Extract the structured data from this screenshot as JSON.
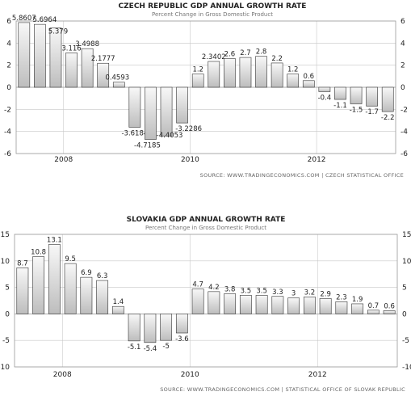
{
  "chart_data": [
    {
      "type": "bar",
      "title": "CZECH REPUBLIC GDP ANNUAL GROWTH RATE",
      "subtitle": "Percent Change in Gross Domestic Product",
      "source": "SOURCE: WWW.TRADINGECONOMICS.COM | CZECH STATISTICAL OFFICE",
      "ylim": [
        -6,
        6
      ],
      "yticks": [
        -6,
        -4,
        -2,
        0,
        2,
        4,
        6
      ],
      "xticks": [
        {
          "label": "2008",
          "index": 3
        },
        {
          "label": "2010",
          "index": 11
        },
        {
          "label": "2012",
          "index": 19
        }
      ],
      "values": [
        5.8607,
        5.6964,
        5.379,
        3.116,
        3.4988,
        2.1777,
        0.4593,
        -3.6184,
        -4.7185,
        -4.4053,
        -3.2286,
        1.2,
        2.3402,
        2.6,
        2.7,
        2.8,
        2.2,
        1.2,
        0.6,
        -0.4,
        -1.1,
        -1.5,
        -1.7,
        -2.2
      ],
      "data_labels": [
        "5.8607",
        "5.6964",
        "5.379",
        "3.116",
        "3.4988",
        "2.1777",
        "0.4593",
        "-3.6184",
        "-4.7185",
        "-4.4053",
        "-3.2286",
        "1.2",
        "2.3402",
        "2.6",
        "2.7",
        "2.8",
        "2.2",
        "1.2",
        "0.6",
        "-0.4",
        "-1.1",
        "-1.5",
        "-1.7",
        "-2.2"
      ],
      "grid": true,
      "y_axis_both_sides": true
    },
    {
      "type": "bar",
      "title": "SLOVAKIA GDP ANNUAL GROWTH RATE",
      "subtitle": "Percent Change in Gross Domestic Product",
      "source": "SOURCE: WWW.TRADINGECONOMICS.COM | STATISTICAL OFFICE OF SLOVAK REPUBLIC",
      "ylim": [
        -10,
        15
      ],
      "yticks": [
        -10,
        -5,
        0,
        5,
        10,
        15
      ],
      "xticks": [
        {
          "label": "2008",
          "index": 3
        },
        {
          "label": "2010",
          "index": 11
        },
        {
          "label": "2012",
          "index": 19
        }
      ],
      "values": [
        8.7,
        10.8,
        13.1,
        9.5,
        6.9,
        6.3,
        1.4,
        -5.1,
        -5.4,
        -5,
        -3.6,
        4.7,
        4.2,
        3.8,
        3.5,
        3.5,
        3.3,
        3,
        3.2,
        2.9,
        2.3,
        1.9,
        0.7,
        0.6
      ],
      "data_labels": [
        "8.7",
        "10.8",
        "13.1",
        "9.5",
        "6.9",
        "6.3",
        "1.4",
        "-5.1",
        "-5.4",
        "-5",
        "-3.6",
        "4.7",
        "4.2",
        "3.8",
        "3.5",
        "3.5",
        "3.3",
        "3",
        "3.2",
        "2.9",
        "2.3",
        "1.9",
        "0.7",
        "0.6"
      ],
      "grid": true,
      "y_axis_both_sides": true
    }
  ],
  "colors": {
    "bar_fill_light": "#f8f8f8",
    "bar_fill_dark": "#bdbdbd",
    "bar_stroke": "#333333",
    "grid": "#c8c8c8",
    "frame": "#999999",
    "text": "#222222"
  }
}
